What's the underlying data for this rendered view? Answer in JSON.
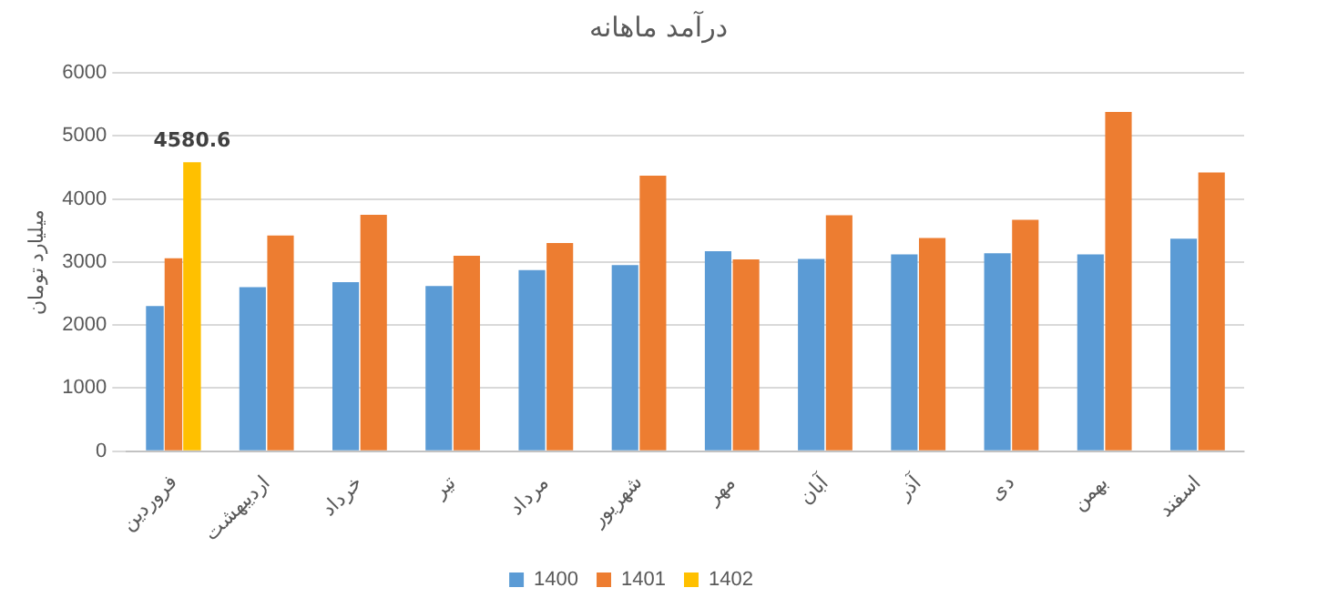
{
  "chart_data": {
    "type": "bar",
    "title": "درآمد ماهانه",
    "ylabel": "میلیارد تومان",
    "categories": [
      "فروردین",
      "اردیبهشت",
      "خرداد",
      "تیر",
      "مرداد",
      "شهریور",
      "مهر",
      "آبان",
      "آذر",
      "دی",
      "بهمن",
      "اسفند"
    ],
    "series": [
      {
        "name": "1400",
        "color": "#5b9bd5",
        "values": [
          2300,
          2600,
          2680,
          2620,
          2870,
          2950,
          3170,
          3050,
          3120,
          3140,
          3120,
          3370
        ]
      },
      {
        "name": "1401",
        "color": "#ed7d31",
        "values": [
          3060,
          3420,
          3750,
          3100,
          3300,
          4370,
          3040,
          3740,
          3380,
          3670,
          5380,
          4420
        ]
      },
      {
        "name": "1402",
        "color": "#ffc000",
        "values": [
          4580.6,
          null,
          null,
          null,
          null,
          null,
          null,
          null,
          null,
          null,
          null,
          null
        ],
        "value_labels": [
          "4580.6",
          null,
          null,
          null,
          null,
          null,
          null,
          null,
          null,
          null,
          null,
          null
        ]
      }
    ],
    "ylim": [
      0,
      6000
    ],
    "yticks": [
      0,
      1000,
      2000,
      3000,
      4000,
      5000,
      6000
    ],
    "grid": "y",
    "legend": "bottom"
  }
}
